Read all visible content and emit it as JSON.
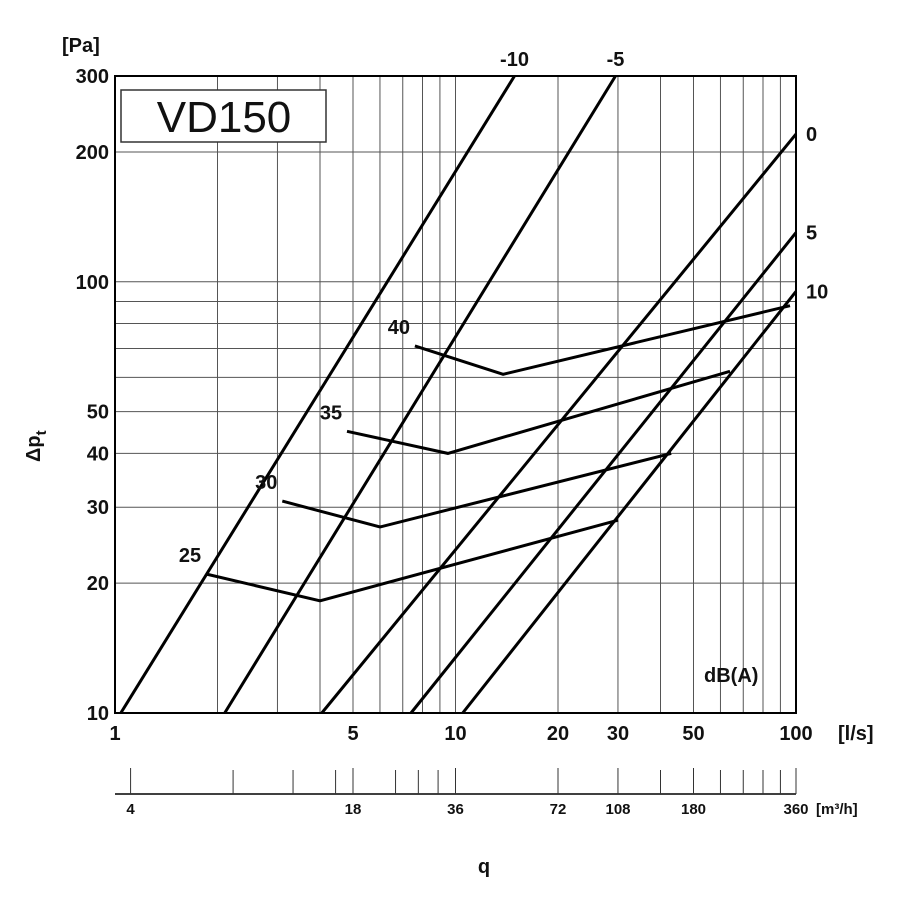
{
  "chart_data": {
    "type": "line",
    "title": "VD150",
    "x_scale": "log",
    "y_scale": "log",
    "xlim": [
      1,
      100
    ],
    "ylim": [
      10,
      300
    ],
    "xlabel": "[l/s]",
    "ylabel": "Δp",
    "ylabel_sub": "t",
    "y_unit": "[Pa]",
    "x_bottom_label": "q",
    "legend_title": "dB(A)",
    "x_ticks": [
      {
        "value": 1,
        "label": "1"
      },
      {
        "value": 5,
        "label": "5"
      },
      {
        "value": 10,
        "label": "10"
      },
      {
        "value": 20,
        "label": "20"
      },
      {
        "value": 30,
        "label": "30"
      },
      {
        "value": 50,
        "label": "50"
      },
      {
        "value": 100,
        "label": "100"
      }
    ],
    "y_ticks": [
      {
        "value": 10,
        "label": "10"
      },
      {
        "value": 20,
        "label": "20"
      },
      {
        "value": 30,
        "label": "30"
      },
      {
        "value": 40,
        "label": "40"
      },
      {
        "value": 50,
        "label": "50"
      },
      {
        "value": 100,
        "label": "100"
      },
      {
        "value": 200,
        "label": "200"
      },
      {
        "value": 300,
        "label": "300"
      }
    ],
    "secondary_axis": {
      "unit": "[m³/h]",
      "ticks": [
        {
          "value": 4,
          "label": "4"
        },
        {
          "value": 18,
          "label": "18"
        },
        {
          "value": 36,
          "label": "36"
        },
        {
          "value": 72,
          "label": "72"
        },
        {
          "value": 108,
          "label": "108"
        },
        {
          "value": 180,
          "label": "180"
        },
        {
          "value": 360,
          "label": "360"
        }
      ]
    },
    "position_lines": [
      {
        "name": "-10",
        "points": [
          [
            1.04,
            10
          ],
          [
            14.9,
            300
          ]
        ]
      },
      {
        "name": "-5",
        "points": [
          [
            2.1,
            10
          ],
          [
            29.5,
            300
          ]
        ]
      },
      {
        "name": "0",
        "points": [
          [
            4.05,
            10
          ],
          [
            100,
            220
          ]
        ]
      },
      {
        "name": "5",
        "points": [
          [
            7.4,
            10
          ],
          [
            100,
            130
          ]
        ]
      },
      {
        "name": "10",
        "points": [
          [
            10.5,
            10
          ],
          [
            100,
            95
          ]
        ]
      }
    ],
    "sound_lines": [
      {
        "name": "25",
        "points": [
          [
            1.85,
            21
          ],
          [
            4.0,
            18.2
          ],
          [
            30,
            28
          ]
        ]
      },
      {
        "name": "30",
        "points": [
          [
            3.1,
            31
          ],
          [
            6.0,
            27
          ],
          [
            43,
            40
          ]
        ]
      },
      {
        "name": "35",
        "points": [
          [
            4.8,
            45
          ],
          [
            9.5,
            40
          ],
          [
            64,
            62
          ]
        ]
      },
      {
        "name": "40",
        "points": [
          [
            7.6,
            71
          ],
          [
            13.8,
            61
          ],
          [
            96,
            88
          ]
        ]
      }
    ]
  }
}
